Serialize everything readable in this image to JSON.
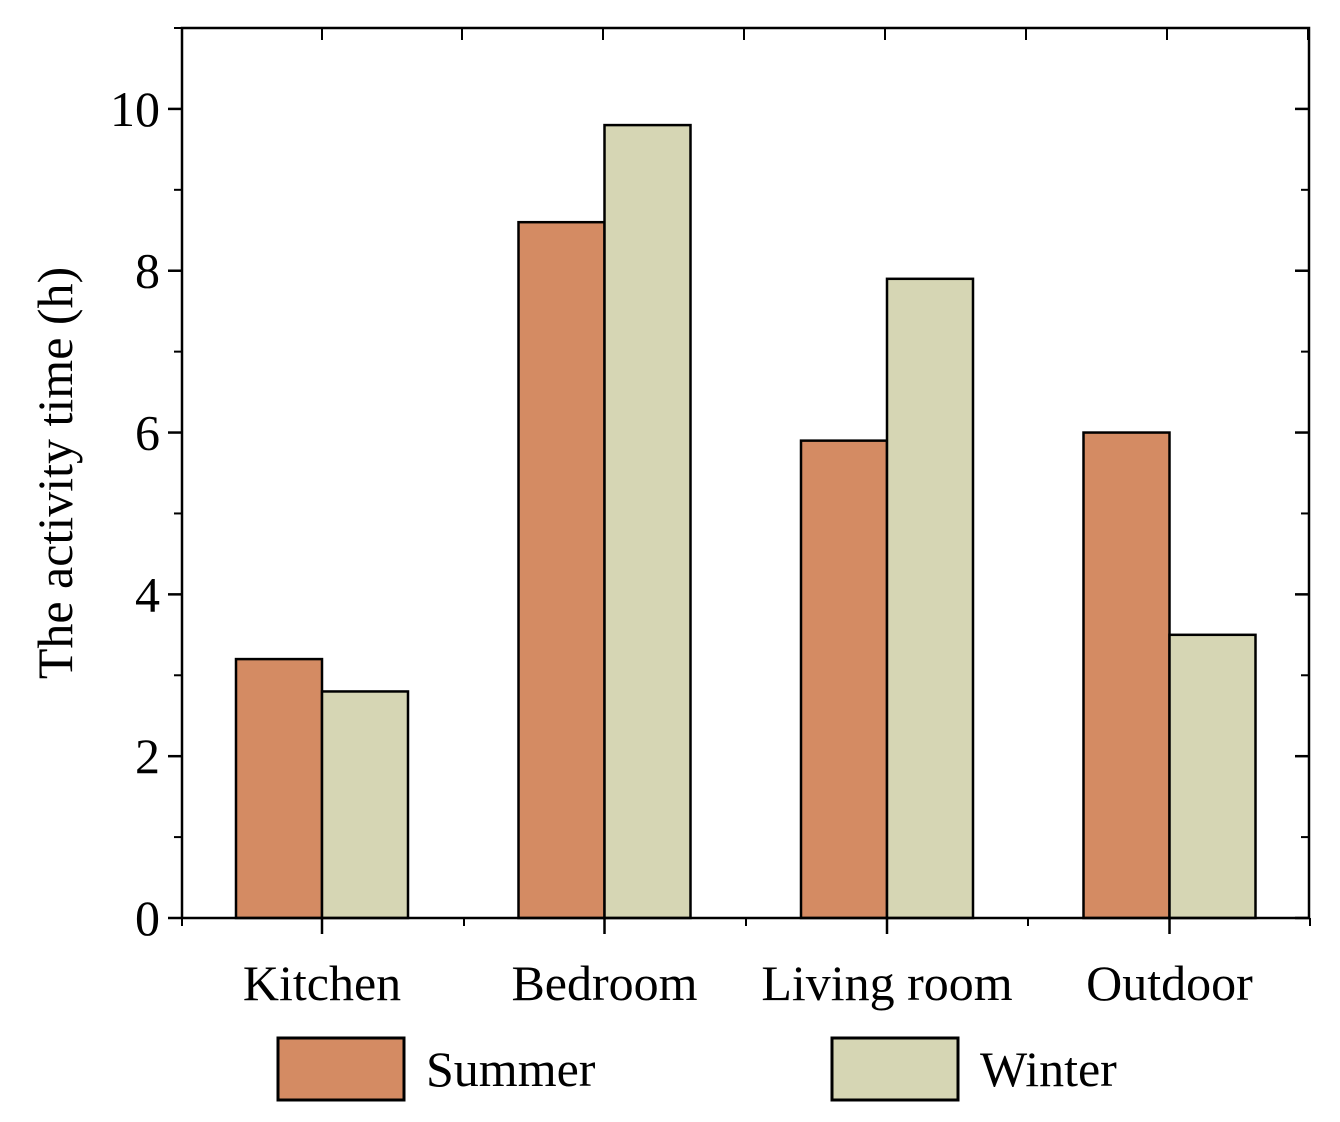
{
  "chart_data": {
    "type": "bar",
    "title": "",
    "xlabel": "",
    "ylabel": "The activity time (h)",
    "categories": [
      "Kitchen",
      "Bedroom",
      "Living room",
      "Outdoor"
    ],
    "series": [
      {
        "name": "Summer",
        "values": [
          3.2,
          8.6,
          5.9,
          6.0
        ],
        "color": "#d48b63"
      },
      {
        "name": "Winter",
        "values": [
          2.8,
          9.8,
          7.9,
          3.5
        ],
        "color": "#d6d6b4"
      }
    ],
    "ylim": [
      0,
      11
    ],
    "yticks": [
      0,
      2,
      4,
      6,
      8,
      10
    ],
    "grid": false,
    "legend_position": "bottom"
  }
}
